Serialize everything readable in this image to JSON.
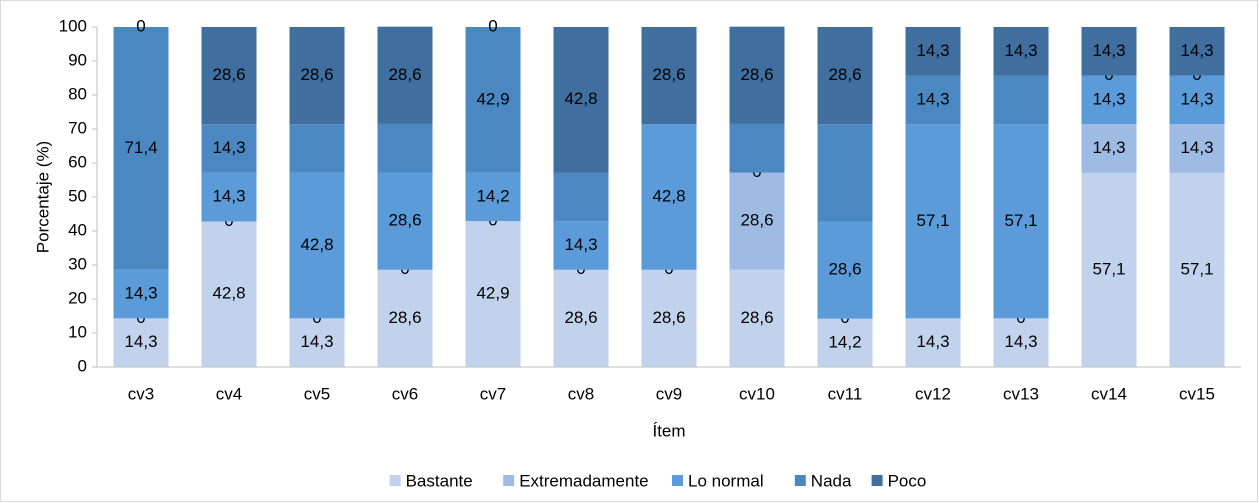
{
  "chart_data": {
    "type": "stacked_bar",
    "x_label": "Ítem",
    "y_label": "Porcentaje (%)",
    "categories": [
      "cv3",
      "cv4",
      "cv5",
      "cv6",
      "cv7",
      "cv8",
      "cv9",
      "cv10",
      "cv11",
      "cv12",
      "cv13",
      "cv14",
      "cv15"
    ],
    "ylim": [
      0,
      100
    ],
    "yticks": [
      0,
      10,
      20,
      30,
      40,
      50,
      60,
      70,
      80,
      90,
      100
    ],
    "legend": "bottom",
    "series": [
      {
        "name": "Bastante",
        "color": "#c1d3ec",
        "values": [
          14.3,
          42.8,
          14.3,
          28.6,
          42.9,
          28.6,
          28.6,
          28.6,
          14.2,
          14.3,
          14.3,
          57.1,
          57.1
        ],
        "value_labels": [
          "14,3",
          "42,8",
          "14,3",
          "28,6",
          "42,9",
          "28,6",
          "28,6",
          "28,6",
          "14,2",
          "14,3",
          "14,3",
          "57,1",
          "57,1"
        ]
      },
      {
        "name": "Extremadamente",
        "color": "#9dbbe3",
        "values": [
          0,
          0,
          0,
          0,
          0,
          0,
          0,
          28.6,
          0,
          0,
          0,
          14.3,
          14.3
        ],
        "value_labels": [
          "0",
          "0",
          "0",
          "0",
          "0",
          "0",
          "0",
          "28,6",
          "0",
          null,
          "0",
          "14,3",
          "14,3"
        ]
      },
      {
        "name": "Lo normal",
        "color": "#5b9bd9",
        "values": [
          14.3,
          14.3,
          42.8,
          28.6,
          14.2,
          14.3,
          42.8,
          0,
          28.6,
          57.1,
          57.1,
          14.3,
          14.3
        ],
        "value_labels": [
          "14,3",
          "14,3",
          "42,8",
          "28,6",
          "14,2",
          "14,3",
          "42,8",
          "0",
          "28,6",
          "57,1",
          "57,1",
          "14,3",
          "14,3"
        ]
      },
      {
        "name": "Nada",
        "color": "#4b88c2",
        "values": [
          71.4,
          14.3,
          14.3,
          14.3,
          42.9,
          14.3,
          0,
          14.3,
          28.6,
          14.3,
          14.3,
          0,
          0
        ],
        "value_labels": [
          "71,4",
          "14,3",
          null,
          null,
          "42,9",
          null,
          null,
          null,
          null,
          "14,3",
          null,
          "0",
          "0"
        ]
      },
      {
        "name": "Poco",
        "color": "#3f6e9f",
        "values": [
          0,
          28.6,
          28.6,
          28.6,
          0,
          42.8,
          28.6,
          28.6,
          28.6,
          14.3,
          14.3,
          14.3,
          14.3
        ],
        "value_labels": [
          "0",
          "28,6",
          "28,6",
          "28,6",
          "0",
          "42,8",
          "28,6",
          "28,6",
          "28,6",
          "14,3",
          "14,3",
          "14,3",
          "14,3"
        ]
      }
    ]
  }
}
